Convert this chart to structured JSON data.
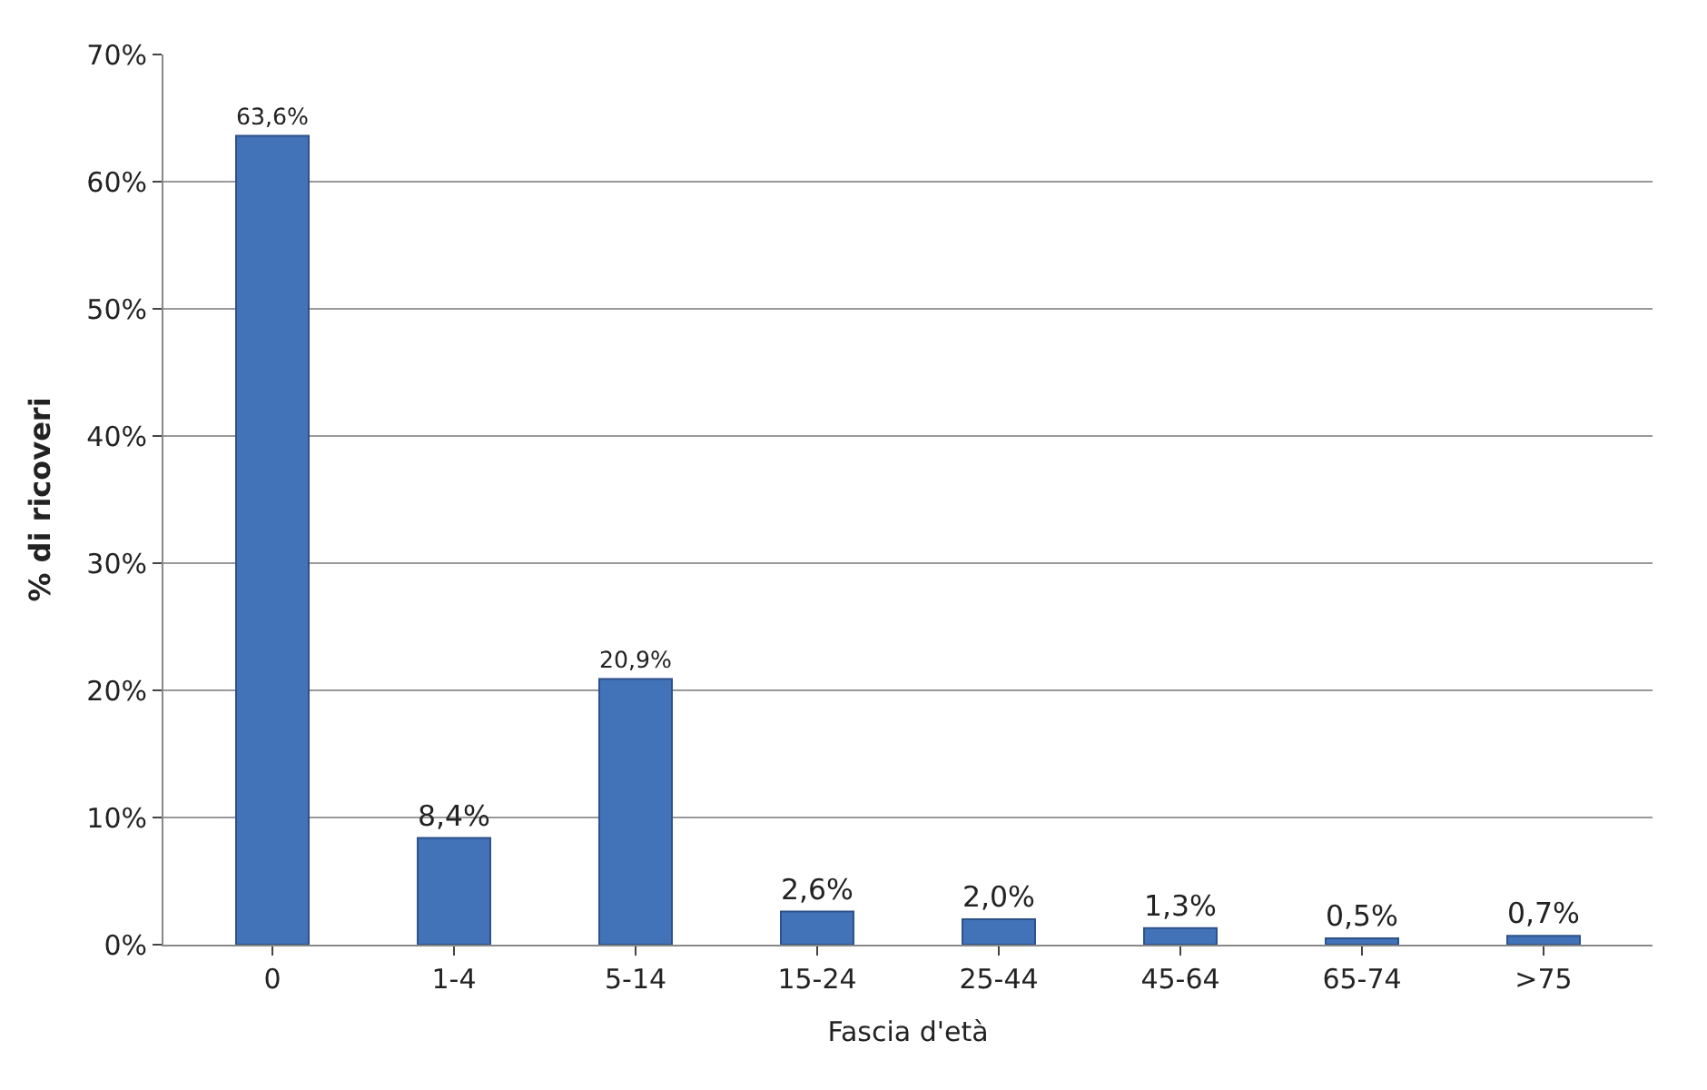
{
  "chart_data": {
    "type": "bar",
    "xlabel": "Fascia d'età",
    "ylabel": "% di ricoveri",
    "categories": [
      "0",
      "1-4",
      "5-14",
      "15-24",
      "25-44",
      "45-64",
      "65-74",
      ">75"
    ],
    "values": [
      63.6,
      8.4,
      20.9,
      2.6,
      2.0,
      1.3,
      0.5,
      0.7
    ],
    "value_labels": [
      "63,6%",
      "8,4%",
      "20,9%",
      "2,6%",
      "2,0%",
      "1,3%",
      "0,5%",
      "0,7%"
    ],
    "color": "#4272b8",
    "ylim": [
      0,
      70
    ],
    "yticks": [
      {
        "value": 0,
        "label": "0%"
      },
      {
        "value": 10,
        "label": "10%"
      },
      {
        "value": 20,
        "label": "20%"
      },
      {
        "value": 30,
        "label": "30%"
      },
      {
        "value": 40,
        "label": "40%"
      },
      {
        "value": 50,
        "label": "50%"
      },
      {
        "value": 60,
        "label": "60%"
      },
      {
        "value": 70,
        "label": "70%"
      }
    ],
    "grid": "y",
    "legend": false
  }
}
